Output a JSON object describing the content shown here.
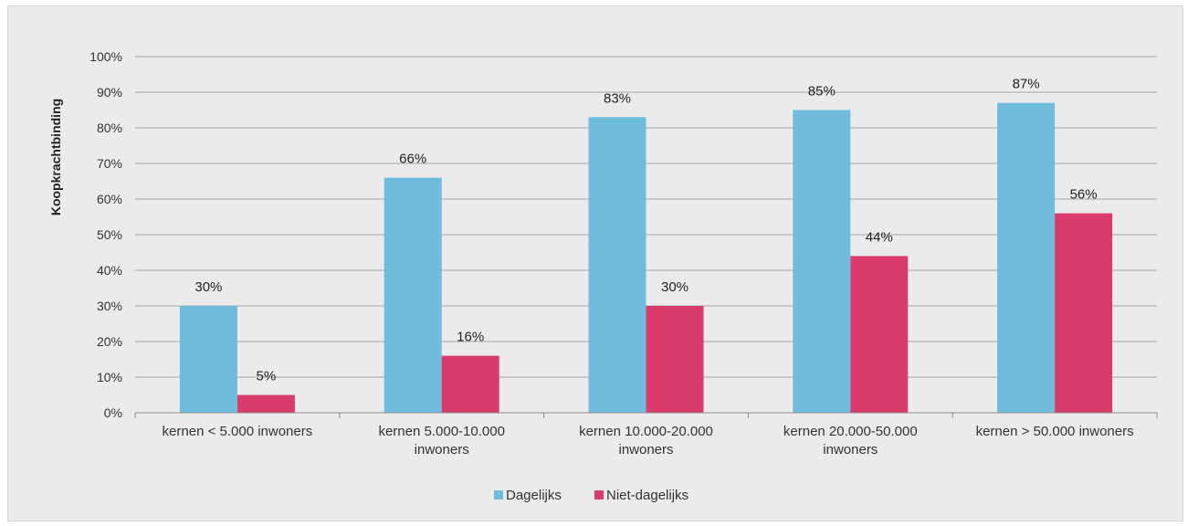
{
  "chart_data": {
    "type": "bar",
    "title": "",
    "xlabel": "",
    "ylabel": "Koopkrachtbinding",
    "ylim": [
      0,
      100
    ],
    "yticks": [
      0,
      10,
      20,
      30,
      40,
      50,
      60,
      70,
      80,
      90,
      100
    ],
    "ytick_suffix": "%",
    "grid": true,
    "legend_position": "bottom",
    "categories": [
      [
        "kernen < 5.000 inwoners"
      ],
      [
        "kernen 5.000-10.000",
        "inwoners"
      ],
      [
        "kernen 10.000-20.000",
        "inwoners"
      ],
      [
        "kernen 20.000-50.000",
        "inwoners"
      ],
      [
        "kernen > 50.000 inwoners"
      ]
    ],
    "series": [
      {
        "name": "Dagelijks",
        "color": "#6fbcdc",
        "values": [
          30,
          66,
          83,
          85,
          87
        ],
        "labels": [
          "30%",
          "66%",
          "83%",
          "85%",
          "87%"
        ]
      },
      {
        "name": "Niet-dagelijks",
        "color": "#d93b6b",
        "values": [
          5,
          16,
          30,
          44,
          56
        ],
        "labels": [
          "5%",
          "16%",
          "30%",
          "44%",
          "56%"
        ]
      }
    ]
  }
}
